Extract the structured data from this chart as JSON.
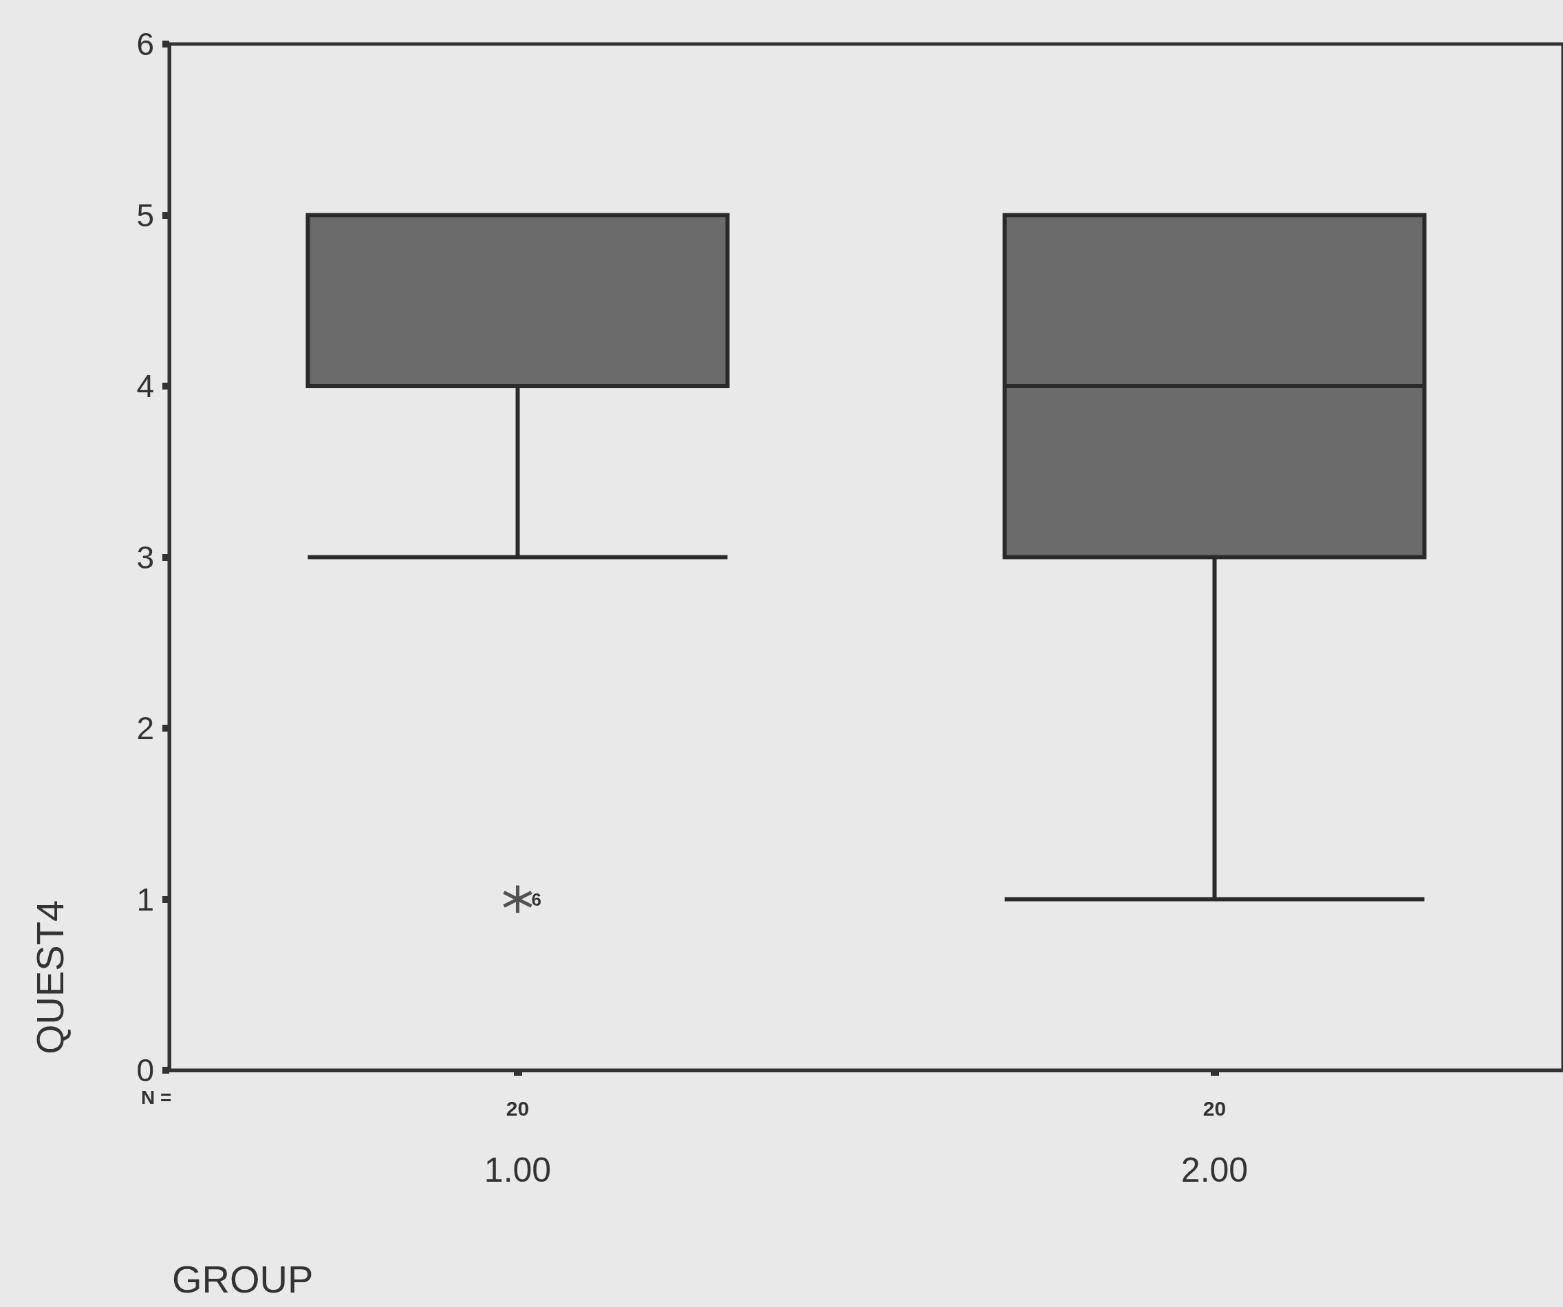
{
  "chart_data": {
    "type": "box",
    "xlabel": "GROUP",
    "ylabel": "QUEST4",
    "categories": [
      "1.00",
      "2.00"
    ],
    "boxes": [
      {
        "low": 3,
        "q1": 4,
        "median": 4,
        "q3": 5,
        "high": 5,
        "outliers": [
          1
        ]
      },
      {
        "low": 1,
        "q1": 3,
        "median": 4,
        "q3": 5,
        "high": 5
      }
    ],
    "color": "#6b6b6b",
    "ylim": [
      0,
      6
    ],
    "yticks": [
      0,
      1,
      2,
      3,
      4,
      5,
      6
    ],
    "grid": false,
    "annotations": [
      "N =",
      "20",
      "20",
      "6"
    ]
  }
}
